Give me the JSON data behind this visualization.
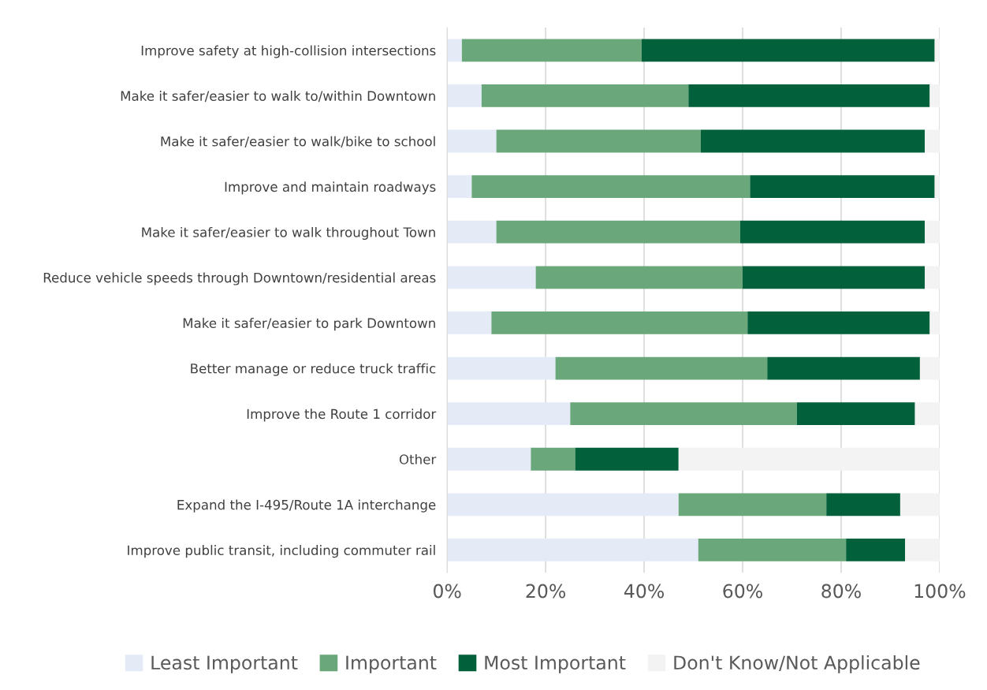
{
  "chart_data": {
    "type": "bar",
    "orientation": "horizontal",
    "stacked": true,
    "categories": [
      "Improve safety at high-collision intersections",
      "Make it safer/easier to walk to/within Downtown",
      "Make it safer/easier to walk/bike to school",
      "Improve and maintain roadways",
      "Make it safer/easier to walk throughout Town",
      "Reduce vehicle speeds through Downtown/residential areas",
      "Make it safer/easier to park Downtown",
      "Better manage or reduce truck traffic",
      "Improve the Route 1 corridor",
      "Other",
      "Expand the I-495/Route 1A interchange",
      "Improve public transit, including commuter rail"
    ],
    "series": [
      {
        "name": "Least Important",
        "color": "#e4eaf6",
        "values": [
          3,
          7,
          10,
          5,
          10,
          18,
          9,
          22,
          25,
          17,
          47,
          51
        ]
      },
      {
        "name": "Important",
        "color": "#6aa77a",
        "values": [
          36.5,
          42,
          41.5,
          56.5,
          49.5,
          42,
          52,
          43,
          46,
          9,
          30,
          30
        ]
      },
      {
        "name": "Most Important",
        "color": "#02613a",
        "values": [
          59.5,
          49,
          45.5,
          37.5,
          37.5,
          37,
          37,
          31,
          24,
          21,
          15,
          12
        ]
      },
      {
        "name": "Don't Know/Not Applicable",
        "color": "#f3f3f3",
        "values": [
          1,
          2,
          3,
          1,
          3,
          3,
          2,
          4,
          5,
          53,
          8,
          7
        ]
      }
    ],
    "xlim": [
      0,
      100
    ],
    "xticks": [
      {
        "value": 0,
        "label": "0%"
      },
      {
        "value": 20,
        "label": "20%"
      },
      {
        "value": 40,
        "label": "40%"
      },
      {
        "value": 60,
        "label": "60%"
      },
      {
        "value": 80,
        "label": "80%"
      },
      {
        "value": 100,
        "label": "100%"
      }
    ],
    "grid": "x",
    "legend": "bottom"
  }
}
